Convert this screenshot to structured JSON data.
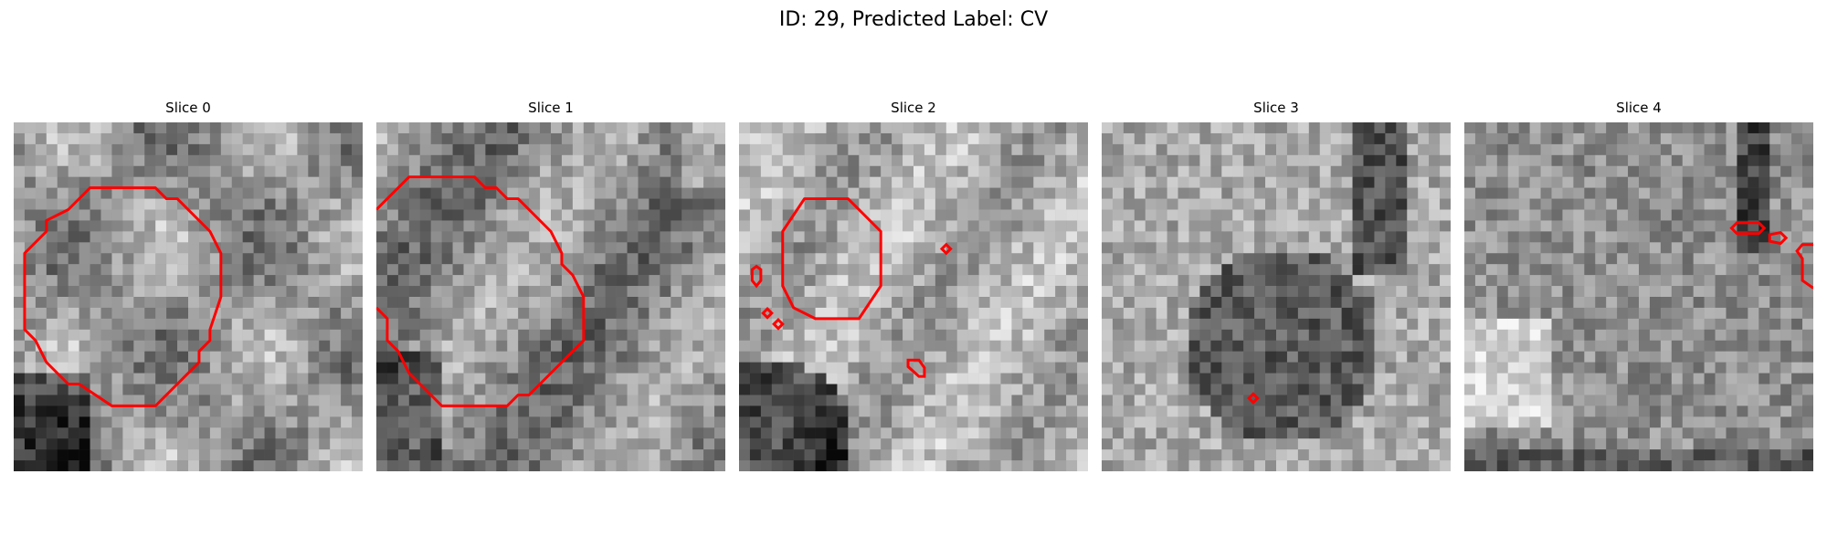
{
  "title": "ID: 29, Predicted Label: CV",
  "contour_color": "#ff0000",
  "slices": [
    {
      "label": "Slice 0"
    },
    {
      "label": "Slice 1"
    },
    {
      "label": "Slice 2"
    },
    {
      "label": "Slice 3"
    },
    {
      "label": "Slice 4"
    }
  ]
}
